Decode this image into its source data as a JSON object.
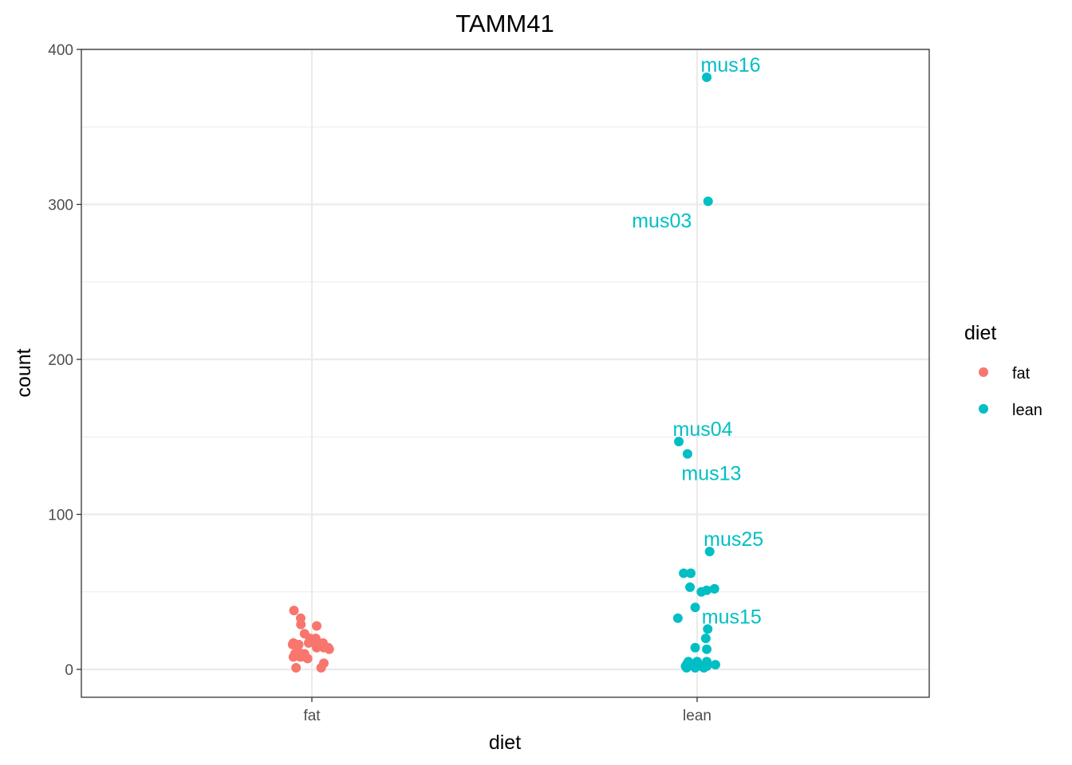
{
  "chart_data": {
    "type": "scatter",
    "title": "TAMM41",
    "xlabel": "diet",
    "ylabel": "count",
    "categories": [
      "fat",
      "lean"
    ],
    "ylim": [
      -18,
      400
    ],
    "yticks": [
      0,
      100,
      200,
      300,
      400
    ],
    "grid": true,
    "legend": {
      "title": "diet",
      "position": "right",
      "entries": [
        {
          "label": "fat",
          "color": "#F8766D"
        },
        {
          "label": "lean",
          "color": "#00BFC4"
        }
      ]
    },
    "series": [
      {
        "name": "fat",
        "color": "#F8766D",
        "points": [
          {
            "x": -0.093,
            "y": 38
          },
          {
            "x": -0.058,
            "y": 33
          },
          {
            "x": -0.057,
            "y": 29
          },
          {
            "x": 0.025,
            "y": 28
          },
          {
            "x": -0.038,
            "y": 23
          },
          {
            "x": -0.01,
            "y": 20
          },
          {
            "x": 0.02,
            "y": 20
          },
          {
            "x": 0.025,
            "y": 18
          },
          {
            "x": -0.017,
            "y": 17
          },
          {
            "x": 0.058,
            "y": 17
          },
          {
            "x": -0.1,
            "y": 16
          },
          {
            "x": -0.096,
            "y": 17
          },
          {
            "x": -0.068,
            "y": 16
          },
          {
            "x": 0.062,
            "y": 14
          },
          {
            "x": 0.09,
            "y": 13
          },
          {
            "x": 0.025,
            "y": 14
          },
          {
            "x": -0.075,
            "y": 12
          },
          {
            "x": -0.068,
            "y": 11
          },
          {
            "x": -0.088,
            "y": 10
          },
          {
            "x": -0.038,
            "y": 10
          },
          {
            "x": -0.096,
            "y": 8
          },
          {
            "x": -0.06,
            "y": 8
          },
          {
            "x": -0.035,
            "y": 8
          },
          {
            "x": -0.022,
            "y": 7
          },
          {
            "x": 0.062,
            "y": 4
          },
          {
            "x": 0.048,
            "y": 1
          },
          {
            "x": -0.082,
            "y": 1
          },
          {
            "x": 0.085,
            "y": 14
          }
        ]
      },
      {
        "name": "lean",
        "color": "#00BFC4",
        "points": [
          {
            "x": 0.05,
            "y": 382,
            "label": "mus16"
          },
          {
            "x": 0.057,
            "y": 302,
            "label": "mus03"
          },
          {
            "x": -0.095,
            "y": 147,
            "label": "mus04"
          },
          {
            "x": -0.05,
            "y": 139,
            "label": "mus13"
          },
          {
            "x": 0.065,
            "y": 76,
            "label": "mus25"
          },
          {
            "x": -0.07,
            "y": 62
          },
          {
            "x": -0.033,
            "y": 62
          },
          {
            "x": -0.037,
            "y": 53
          },
          {
            "x": 0.09,
            "y": 52
          },
          {
            "x": 0.05,
            "y": 51
          },
          {
            "x": 0.022,
            "y": 50
          },
          {
            "x": -0.01,
            "y": 40
          },
          {
            "x": -0.1,
            "y": 33
          },
          {
            "x": 0.055,
            "y": 26,
            "label": "mus15"
          },
          {
            "x": 0.045,
            "y": 20
          },
          {
            "x": 0.05,
            "y": 13
          },
          {
            "x": -0.01,
            "y": 14
          },
          {
            "x": 0.05,
            "y": 5
          },
          {
            "x": 0.0,
            "y": 5
          },
          {
            "x": -0.045,
            "y": 5
          },
          {
            "x": -0.05,
            "y": 4
          },
          {
            "x": -0.055,
            "y": 3
          },
          {
            "x": 0.095,
            "y": 3
          },
          {
            "x": -0.06,
            "y": 2
          },
          {
            "x": 0.025,
            "y": 2
          },
          {
            "x": 0.035,
            "y": 1
          },
          {
            "x": 0.05,
            "y": 2
          },
          {
            "x": -0.01,
            "y": 1
          },
          {
            "x": -0.055,
            "y": 1
          }
        ]
      }
    ]
  }
}
